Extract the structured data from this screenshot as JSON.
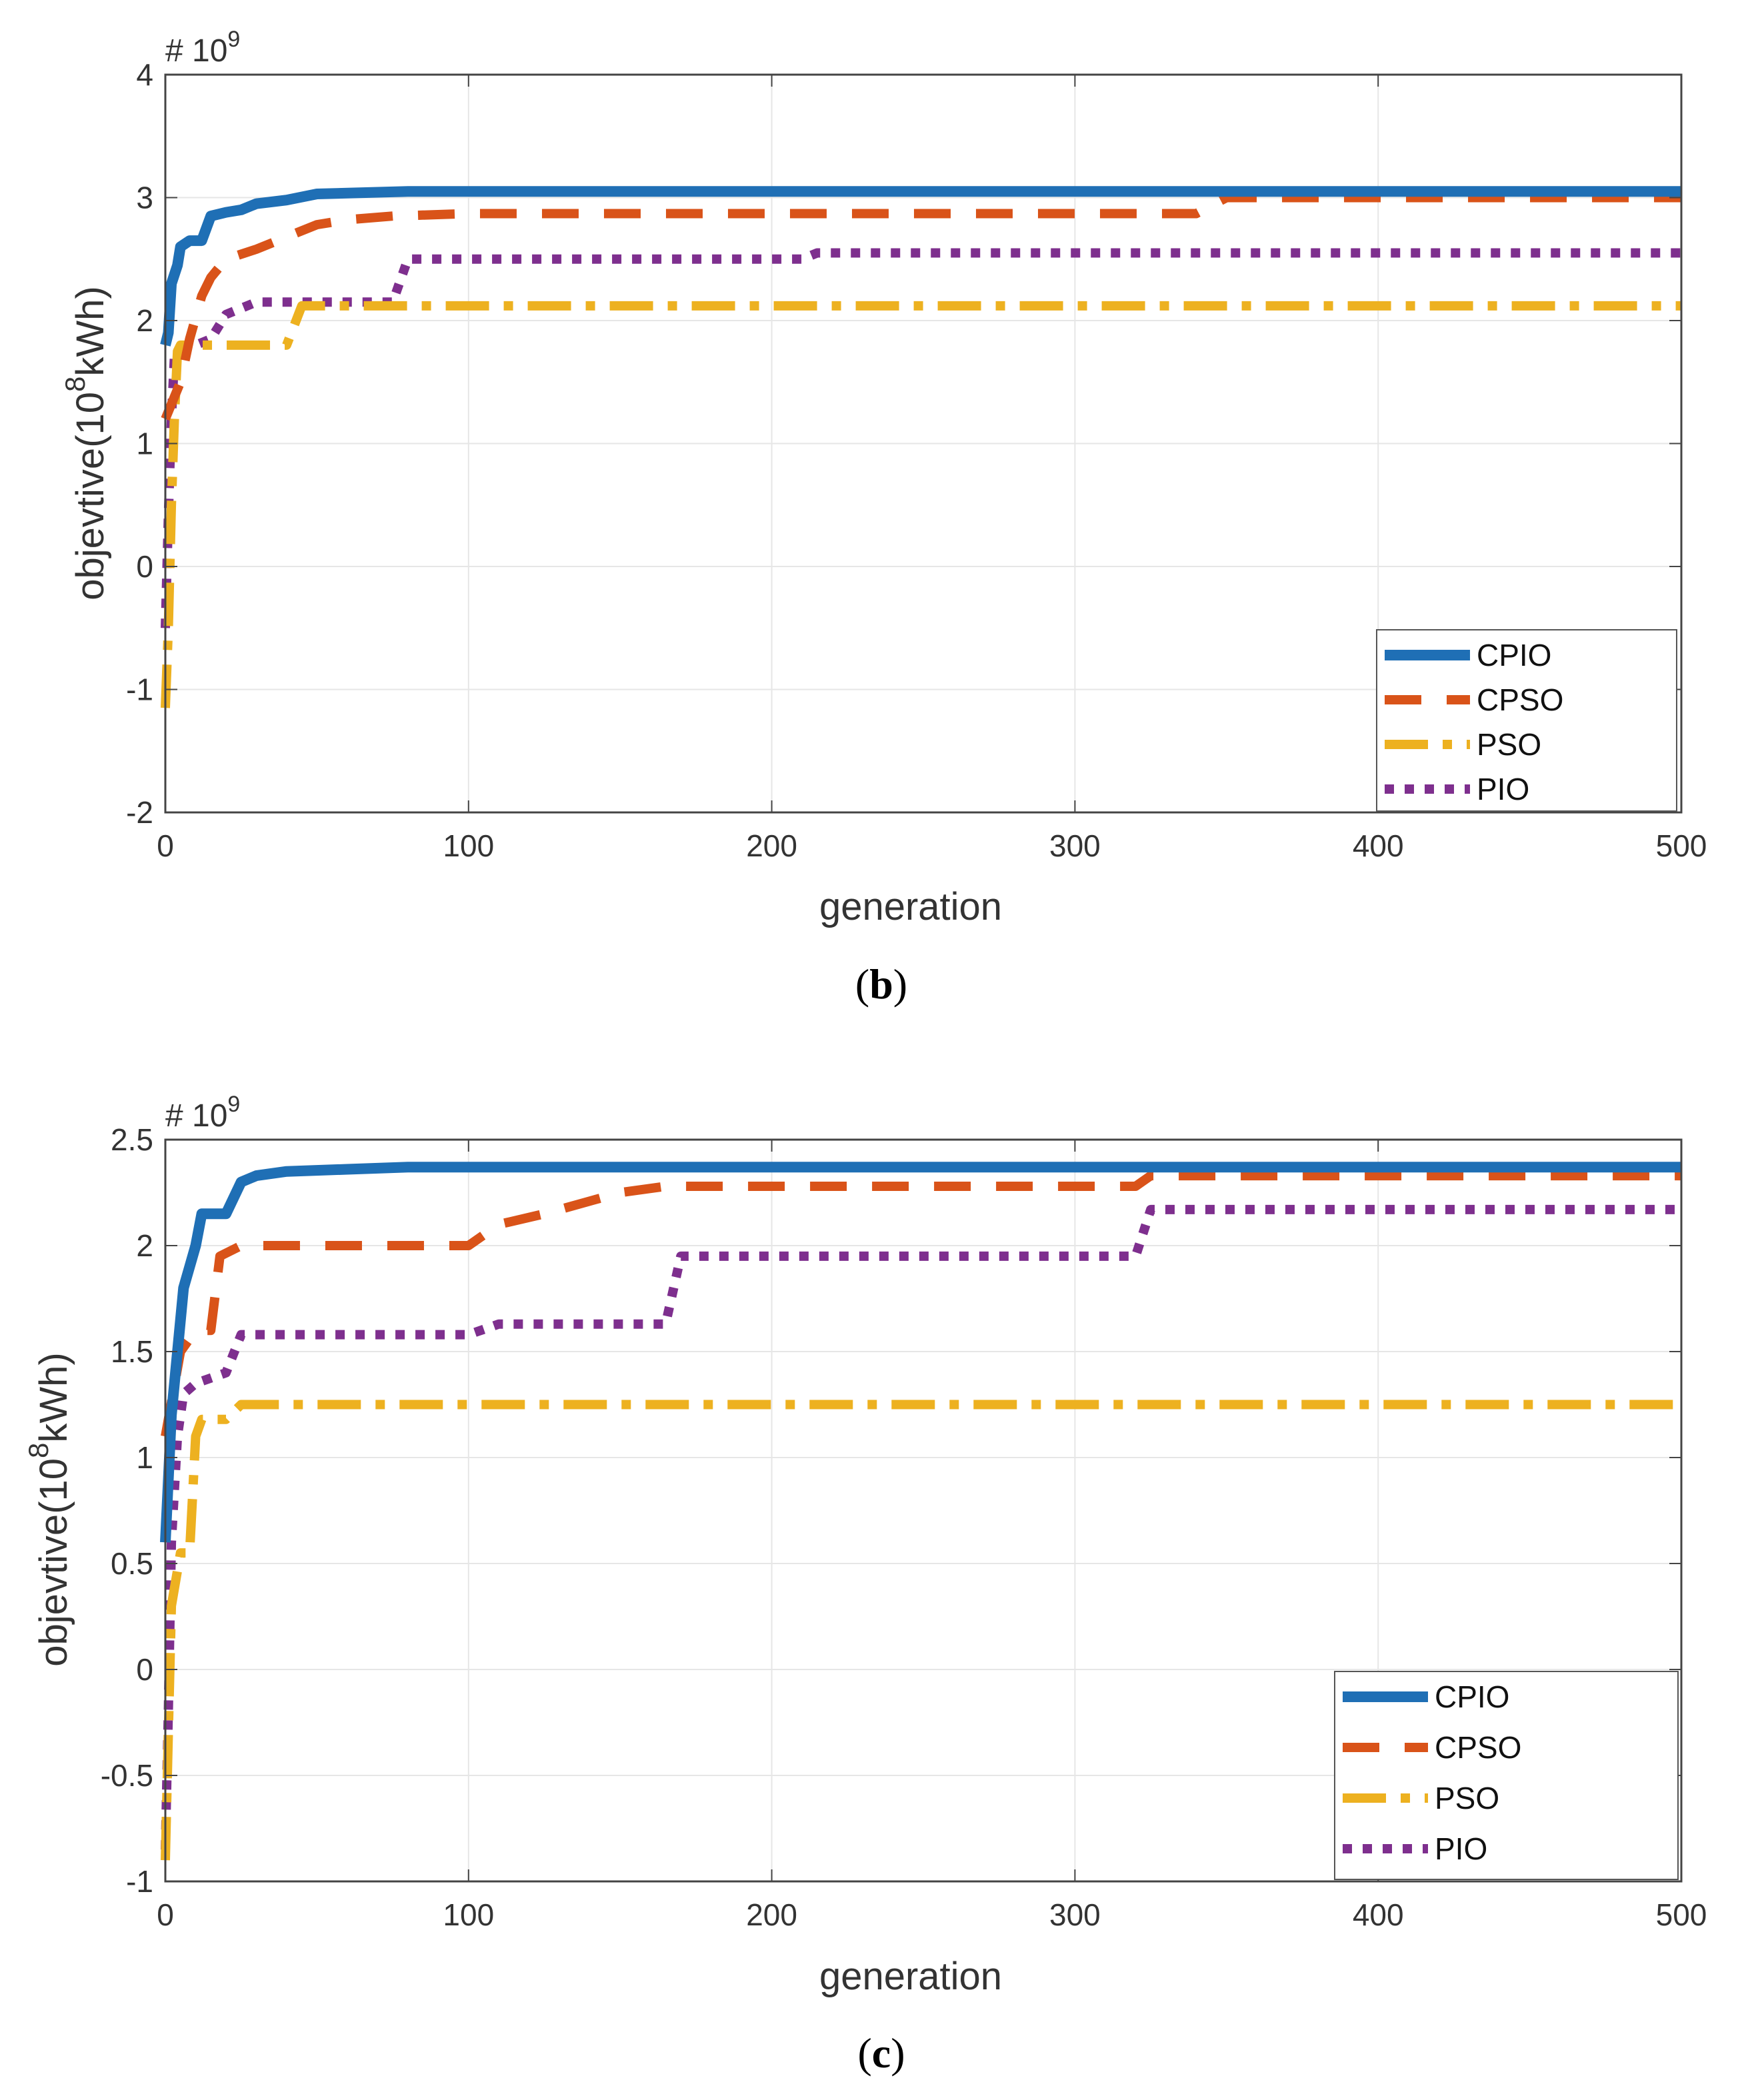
{
  "chart_data": [
    {
      "type": "line",
      "panel": "b",
      "caption_bold": "b",
      "exponent_base": "# 10",
      "exponent_power": "9",
      "xlabel": "generation",
      "ylabel_main": "objevtive(10",
      "ylabel_sup": "8",
      "ylabel_tail": "kWh)",
      "xlim": [
        0,
        500
      ],
      "ylim": [
        -2,
        4
      ],
      "xticks": [
        0,
        100,
        200,
        300,
        400,
        500
      ],
      "yticks": [
        -2,
        -1,
        0,
        1,
        2,
        3,
        4
      ],
      "grid": true,
      "legend_position": "lower-right",
      "series": [
        {
          "name": "CPIO",
          "color": "#1f6fb5",
          "style": "solid",
          "points": [
            [
              0,
              1.8
            ],
            [
              1,
              1.9
            ],
            [
              2,
              2.3
            ],
            [
              4,
              2.45
            ],
            [
              5,
              2.6
            ],
            [
              8,
              2.65
            ],
            [
              12,
              2.65
            ],
            [
              15,
              2.85
            ],
            [
              20,
              2.88
            ],
            [
              25,
              2.9
            ],
            [
              30,
              2.95
            ],
            [
              40,
              2.98
            ],
            [
              50,
              3.03
            ],
            [
              80,
              3.05
            ],
            [
              500,
              3.05
            ]
          ]
        },
        {
          "name": "CPSO",
          "color": "#d95319",
          "style": "dashed",
          "points": [
            [
              0,
              1.2
            ],
            [
              5,
              1.5
            ],
            [
              8,
              1.85
            ],
            [
              12,
              2.2
            ],
            [
              15,
              2.35
            ],
            [
              20,
              2.5
            ],
            [
              30,
              2.58
            ],
            [
              40,
              2.68
            ],
            [
              50,
              2.78
            ],
            [
              60,
              2.82
            ],
            [
              75,
              2.85
            ],
            [
              100,
              2.87
            ],
            [
              340,
              2.87
            ],
            [
              350,
              3.0
            ],
            [
              500,
              3.0
            ]
          ]
        },
        {
          "name": "PSO",
          "color": "#edb120",
          "style": "dashdot",
          "points": [
            [
              0,
              -1.15
            ],
            [
              1,
              -0.5
            ],
            [
              2,
              0.5
            ],
            [
              3,
              1.2
            ],
            [
              4,
              1.75
            ],
            [
              5,
              1.8
            ],
            [
              40,
              1.8
            ],
            [
              45,
              2.12
            ],
            [
              500,
              2.12
            ]
          ]
        },
        {
          "name": "PIO",
          "color": "#7e2f8e",
          "style": "dotted",
          "points": [
            [
              0,
              -0.5
            ],
            [
              1,
              0.4
            ],
            [
              2,
              1.2
            ],
            [
              3,
              1.7
            ],
            [
              5,
              1.75
            ],
            [
              15,
              1.85
            ],
            [
              20,
              2.05
            ],
            [
              30,
              2.15
            ],
            [
              75,
              2.15
            ],
            [
              80,
              2.5
            ],
            [
              210,
              2.5
            ],
            [
              215,
              2.55
            ],
            [
              500,
              2.55
            ]
          ]
        }
      ]
    },
    {
      "type": "line",
      "panel": "c",
      "caption_bold": "c",
      "exponent_base": "# 10",
      "exponent_power": "9",
      "xlabel": "generation",
      "ylabel_main": "objevtive(10",
      "ylabel_sup": "8",
      "ylabel_tail": "kWh)",
      "xlim": [
        0,
        500
      ],
      "ylim": [
        -1,
        2.5
      ],
      "xticks": [
        0,
        100,
        200,
        300,
        400,
        500
      ],
      "yticks": [
        -1,
        -0.5,
        0,
        0.5,
        1,
        1.5,
        2,
        2.5
      ],
      "grid": true,
      "legend_position": "lower-right",
      "series": [
        {
          "name": "CPIO",
          "color": "#1f6fb5",
          "style": "solid",
          "points": [
            [
              0,
              0.6
            ],
            [
              2,
              1.2
            ],
            [
              4,
              1.5
            ],
            [
              6,
              1.8
            ],
            [
              8,
              1.9
            ],
            [
              10,
              2.0
            ],
            [
              12,
              2.15
            ],
            [
              20,
              2.15
            ],
            [
              25,
              2.3
            ],
            [
              30,
              2.33
            ],
            [
              40,
              2.35
            ],
            [
              60,
              2.36
            ],
            [
              80,
              2.37
            ],
            [
              500,
              2.37
            ]
          ]
        },
        {
          "name": "CPSO",
          "color": "#d95319",
          "style": "dashed",
          "points": [
            [
              0,
              1.1
            ],
            [
              5,
              1.5
            ],
            [
              10,
              1.6
            ],
            [
              15,
              1.6
            ],
            [
              18,
              1.95
            ],
            [
              25,
              2.0
            ],
            [
              100,
              2.0
            ],
            [
              110,
              2.1
            ],
            [
              125,
              2.15
            ],
            [
              150,
              2.25
            ],
            [
              165,
              2.28
            ],
            [
              320,
              2.28
            ],
            [
              325,
              2.33
            ],
            [
              500,
              2.33
            ]
          ]
        },
        {
          "name": "PSO",
          "color": "#edb120",
          "style": "dashdot",
          "points": [
            [
              0,
              -0.9
            ],
            [
              1,
              -0.3
            ],
            [
              2,
              0.3
            ],
            [
              5,
              0.55
            ],
            [
              8,
              0.55
            ],
            [
              10,
              1.1
            ],
            [
              12,
              1.18
            ],
            [
              20,
              1.18
            ],
            [
              25,
              1.25
            ],
            [
              500,
              1.25
            ]
          ]
        },
        {
          "name": "PIO",
          "color": "#7e2f8e",
          "style": "dotted",
          "points": [
            [
              0,
              -0.85
            ],
            [
              1,
              -0.2
            ],
            [
              2,
              0.6
            ],
            [
              4,
              1.1
            ],
            [
              6,
              1.3
            ],
            [
              10,
              1.35
            ],
            [
              20,
              1.4
            ],
            [
              25,
              1.58
            ],
            [
              100,
              1.58
            ],
            [
              110,
              1.63
            ],
            [
              165,
              1.63
            ],
            [
              170,
              1.95
            ],
            [
              320,
              1.95
            ],
            [
              325,
              2.17
            ],
            [
              500,
              2.17
            ]
          ]
        }
      ]
    }
  ]
}
